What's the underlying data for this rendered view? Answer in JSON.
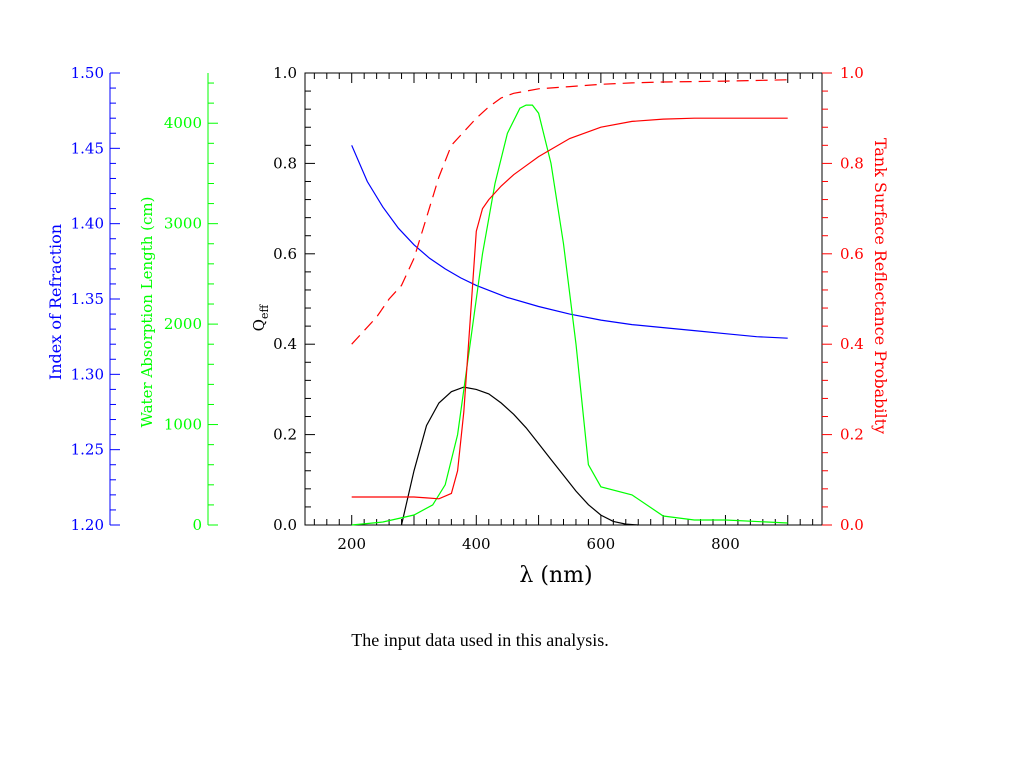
{
  "caption": "The input data used in this analysis.",
  "chart_data": {
    "type": "line",
    "xlabel": "λ (nm)",
    "xlim": [
      125,
      955
    ],
    "x_ticks": [
      200,
      400,
      600,
      800
    ],
    "x_tick_labels": [
      "200",
      "400",
      "600",
      "800"
    ],
    "grid": false,
    "legend": "none",
    "axes": {
      "qeff": {
        "label": "Qeff",
        "label_main": "Q",
        "label_sub": "eff",
        "color": "#000000",
        "ylim": [
          0,
          1
        ],
        "ticks": [
          0,
          0.2,
          0.4,
          0.6,
          0.8,
          1.0
        ],
        "tick_labels": [
          "0.0",
          "0.2",
          "0.4",
          "0.6",
          "0.8",
          "1.0"
        ]
      },
      "refl": {
        "label": "Tank Surface Reflectance Probabilty",
        "color": "#ff0000",
        "ylim": [
          0,
          1
        ],
        "ticks": [
          0,
          0.2,
          0.4,
          0.6,
          0.8,
          1.0
        ],
        "tick_labels": [
          "0.0",
          "0.2",
          "0.4",
          "0.6",
          "0.8",
          "1.0"
        ]
      },
      "refr": {
        "label": "Index of Refraction",
        "color": "#0000ff",
        "ylim": [
          1.2,
          1.5
        ],
        "ticks": [
          1.2,
          1.25,
          1.3,
          1.35,
          1.4,
          1.45,
          1.5
        ],
        "tick_labels": [
          "1.20",
          "1.25",
          "1.30",
          "1.35",
          "1.40",
          "1.45",
          "1.50"
        ]
      },
      "absl": {
        "label": "Water Absorption Length (cm)",
        "color": "#00ff00",
        "ylim": [
          0,
          4500
        ],
        "ticks": [
          0,
          1000,
          2000,
          3000,
          4000
        ],
        "tick_labels": [
          "0",
          "1000",
          "2000",
          "3000",
          "4000"
        ]
      }
    },
    "series": [
      {
        "axis": "qeff",
        "color": "#000000",
        "dash": false,
        "x": [
          280,
          300,
          320,
          340,
          360,
          380,
          400,
          420,
          440,
          460,
          480,
          500,
          520,
          540,
          560,
          580,
          600,
          620,
          640,
          660
        ],
        "y": [
          0.0,
          0.12,
          0.22,
          0.27,
          0.295,
          0.305,
          0.3,
          0.29,
          0.27,
          0.245,
          0.215,
          0.18,
          0.145,
          0.11,
          0.075,
          0.045,
          0.022,
          0.008,
          0.002,
          0.0
        ]
      },
      {
        "axis": "refr",
        "color": "#0000ff",
        "dash": false,
        "x": [
          200,
          225,
          250,
          275,
          300,
          325,
          350,
          375,
          400,
          450,
          500,
          550,
          600,
          650,
          700,
          750,
          800,
          850,
          900
        ],
        "y": [
          1.452,
          1.428,
          1.411,
          1.397,
          1.386,
          1.377,
          1.37,
          1.364,
          1.359,
          1.351,
          1.345,
          1.34,
          1.336,
          1.333,
          1.331,
          1.329,
          1.327,
          1.325,
          1.324
        ]
      },
      {
        "axis": "absl",
        "color": "#00ff00",
        "dash": false,
        "x": [
          200,
          250,
          300,
          330,
          350,
          370,
          390,
          410,
          430,
          450,
          470,
          480,
          490,
          500,
          520,
          540,
          560,
          580,
          600,
          650,
          700,
          750,
          800,
          900
        ],
        "y": [
          0,
          30,
          100,
          200,
          400,
          900,
          1800,
          2700,
          3400,
          3900,
          4150,
          4180,
          4180,
          4100,
          3600,
          2800,
          1800,
          600,
          380,
          300,
          90,
          50,
          50,
          20
        ]
      },
      {
        "axis": "refl",
        "color": "#ff0000",
        "dash": false,
        "x": [
          200,
          300,
          320,
          340,
          360,
          370,
          380,
          390,
          400,
          410,
          420,
          440,
          460,
          480,
          500,
          550,
          600,
          650,
          700,
          750,
          800,
          900
        ],
        "y": [
          0.062,
          0.062,
          0.06,
          0.058,
          0.07,
          0.12,
          0.25,
          0.45,
          0.65,
          0.7,
          0.72,
          0.75,
          0.775,
          0.795,
          0.815,
          0.855,
          0.88,
          0.893,
          0.898,
          0.9,
          0.9,
          0.9
        ]
      },
      {
        "axis": "refl",
        "color": "#ff0000",
        "dash": true,
        "x": [
          200,
          220,
          240,
          260,
          280,
          300,
          320,
          340,
          360,
          380,
          400,
          420,
          440,
          460,
          480,
          500,
          550,
          600,
          650,
          700,
          800,
          900
        ],
        "y": [
          0.4,
          0.43,
          0.46,
          0.5,
          0.53,
          0.59,
          0.68,
          0.77,
          0.84,
          0.87,
          0.9,
          0.925,
          0.945,
          0.955,
          0.96,
          0.965,
          0.97,
          0.975,
          0.978,
          0.98,
          0.982,
          0.985
        ]
      }
    ]
  }
}
